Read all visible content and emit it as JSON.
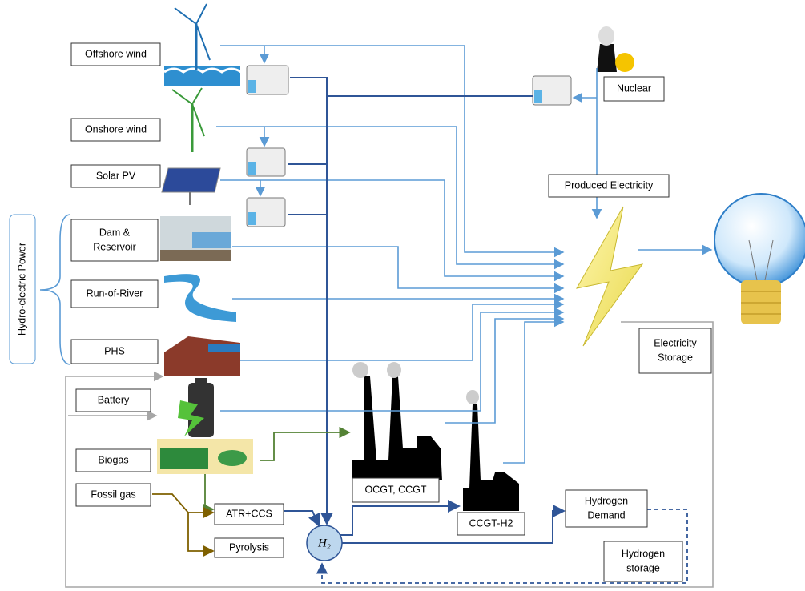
{
  "nodes": [
    {
      "id": "offshore",
      "label": [
        "Offshore wind"
      ]
    },
    {
      "id": "onshore",
      "label": [
        "Onshore wind"
      ]
    },
    {
      "id": "solar",
      "label": [
        "Solar PV"
      ]
    },
    {
      "id": "dam",
      "label": [
        "Dam &",
        "Reservoir"
      ]
    },
    {
      "id": "river",
      "label": [
        "Run-of-River"
      ]
    },
    {
      "id": "phs",
      "label": [
        "PHS"
      ]
    },
    {
      "id": "battery",
      "label": [
        "Battery"
      ]
    },
    {
      "id": "biogas",
      "label": [
        "Biogas"
      ]
    },
    {
      "id": "fossil",
      "label": [
        "Fossil gas"
      ]
    },
    {
      "id": "atr",
      "label": [
        "ATR+CCS"
      ]
    },
    {
      "id": "pyrolysis",
      "label": [
        "Pyrolysis"
      ]
    },
    {
      "id": "h2",
      "label": [
        "H₂"
      ]
    },
    {
      "id": "ocgt",
      "label": [
        "OCGT, CCGT"
      ]
    },
    {
      "id": "ccgth2",
      "label": [
        "CCGT-H2"
      ]
    },
    {
      "id": "hdemand",
      "label": [
        "Hydrogen",
        "Demand"
      ]
    },
    {
      "id": "hstorage",
      "label": [
        "Hydrogen",
        "storage"
      ]
    },
    {
      "id": "nuclear",
      "label": [
        "Nuclear"
      ]
    },
    {
      "id": "produced",
      "label": [
        "Produced Electricity"
      ]
    },
    {
      "id": "estorage",
      "label": [
        "Electricity",
        "Storage"
      ]
    }
  ],
  "group": {
    "label": "Hydro-electric Power"
  }
}
